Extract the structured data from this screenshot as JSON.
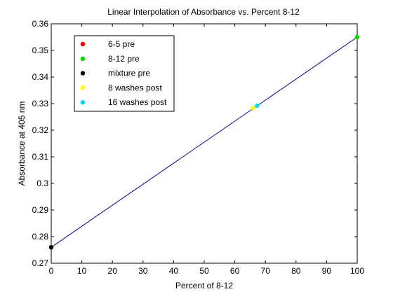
{
  "chart_data": {
    "type": "line",
    "title": "Linear Interpolation of Absorbance vs. Percent 8-12",
    "xlabel": "Percent of 8-12",
    "ylabel": "Absorbance at 405 nm",
    "xlim": [
      0,
      100
    ],
    "ylim": [
      0.27,
      0.36
    ],
    "xticks": [
      0,
      10,
      20,
      30,
      40,
      50,
      60,
      70,
      80,
      90,
      100
    ],
    "xtick_labels": [
      "0",
      "10",
      "20",
      "30",
      "40",
      "50",
      "60",
      "70",
      "80",
      "90",
      "100"
    ],
    "yticks": [
      0.27,
      0.28,
      0.29,
      0.3,
      0.31,
      0.32,
      0.33,
      0.34,
      0.35,
      0.36
    ],
    "ytick_labels": [
      "0.27",
      "0.28",
      "0.29",
      "0.3",
      "0.31",
      "0.32",
      "0.33",
      "0.34",
      "0.35",
      "0.36"
    ],
    "grid": false,
    "legend_position": "top-left",
    "line": {
      "color": "#00008b",
      "x": [
        0,
        100
      ],
      "y": [
        0.276,
        0.355
      ]
    },
    "series": [
      {
        "name": "6-5 pre",
        "color": "#ff0000",
        "x": [
          0
        ],
        "y": [
          0.276
        ]
      },
      {
        "name": "8-12 pre",
        "color": "#00dd00",
        "x": [
          100
        ],
        "y": [
          0.355
        ]
      },
      {
        "name": "mixture pre",
        "color": "#000000",
        "x": [
          0
        ],
        "y": [
          0.276
        ]
      },
      {
        "name": "8 washes post",
        "color": "#ffff00",
        "x": [
          66
        ],
        "y": [
          0.3283
        ]
      },
      {
        "name": "16 washes post",
        "color": "#00d8ff",
        "x": [
          67.3
        ],
        "y": [
          0.3292
        ]
      }
    ]
  }
}
